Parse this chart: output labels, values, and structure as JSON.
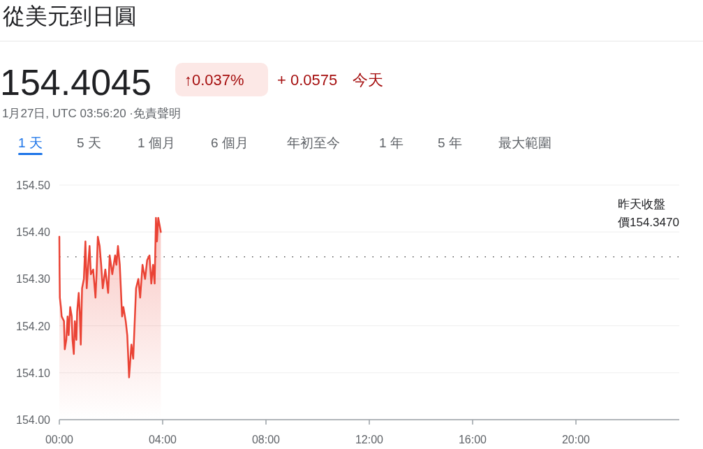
{
  "chart_data": {
    "type": "area",
    "title": "從美元到日圓",
    "annotations": [
      "154.4045",
      "↑0.037%",
      "+ 0.0575",
      "今天",
      "1月27日, UTC 03:56:20 ·免責聲明",
      "1 天",
      "5 天",
      "1 個月",
      "6 個月",
      "年初至今",
      "1 年",
      "5 年",
      "最大範圍"
    ],
    "x": [
      0,
      0.01,
      0.02,
      0.06,
      0.09,
      0.18,
      0.21,
      0.27,
      0.32,
      0.36,
      0.42,
      0.48,
      0.51,
      0.56,
      0.6,
      0.66,
      0.69,
      0.75,
      0.79,
      0.83,
      0.88,
      0.95,
      1.01,
      1.06,
      1.13,
      1.17,
      1.22,
      1.31,
      1.4,
      1.44,
      1.49,
      1.56,
      1.62,
      1.68,
      1.78,
      1.89,
      1.95,
      2.05,
      2.16,
      2.21,
      2.27,
      2.34,
      2.43,
      2.48,
      2.57,
      2.63,
      2.7,
      2.79,
      2.86,
      2.97,
      3.06,
      3.13,
      3.22,
      3.32,
      3.4,
      3.49,
      3.56,
      3.63,
      3.69,
      3.74,
      3.78,
      3.83,
      3.93
    ],
    "series": [
      {
        "color": "#ea4335",
        "values": [
          154.39,
          154.31,
          154.26,
          154.24,
          154.22,
          154.21,
          154.15,
          154.17,
          154.22,
          154.18,
          154.24,
          154.22,
          154.17,
          154.14,
          154.21,
          154.17,
          154.23,
          154.27,
          154.23,
          154.16,
          154.28,
          154.3,
          154.38,
          154.28,
          154.34,
          154.37,
          154.31,
          154.32,
          154.26,
          154.31,
          154.39,
          154.37,
          154.33,
          154.28,
          154.32,
          154.27,
          154.35,
          154.31,
          154.35,
          154.33,
          154.37,
          154.33,
          154.22,
          154.24,
          154.21,
          154.18,
          154.09,
          154.16,
          154.13,
          154.28,
          154.3,
          154.26,
          154.33,
          154.3,
          154.34,
          154.35,
          154.29,
          154.33,
          154.29,
          154.43,
          154.38,
          154.43,
          154.4
        ]
      }
    ],
    "xlim": [
      0,
      24
    ],
    "xticks": [
      {
        "value": 0,
        "label": "00:00"
      },
      {
        "value": 4,
        "label": "04:00"
      },
      {
        "value": 8,
        "label": "08:00"
      },
      {
        "value": 12,
        "label": "12:00"
      },
      {
        "value": 16,
        "label": "16:00"
      },
      {
        "value": 20,
        "label": "20:00"
      }
    ],
    "ylim": [
      154.0,
      154.5
    ],
    "yticks": [
      {
        "value": 154.0,
        "label": "154.00"
      },
      {
        "value": 154.1,
        "label": "154.10"
      },
      {
        "value": 154.2,
        "label": "154.20"
      },
      {
        "value": 154.3,
        "label": "154.30"
      },
      {
        "value": 154.4,
        "label": "154.40"
      },
      {
        "value": 154.5,
        "label": "154.50"
      }
    ],
    "grid": "y",
    "ref_lines": [
      {
        "axis": "y",
        "value": 154.347,
        "label": "昨天收盤價154.3470",
        "line_style": "dotted",
        "color": "#555555"
      }
    ]
  }
}
